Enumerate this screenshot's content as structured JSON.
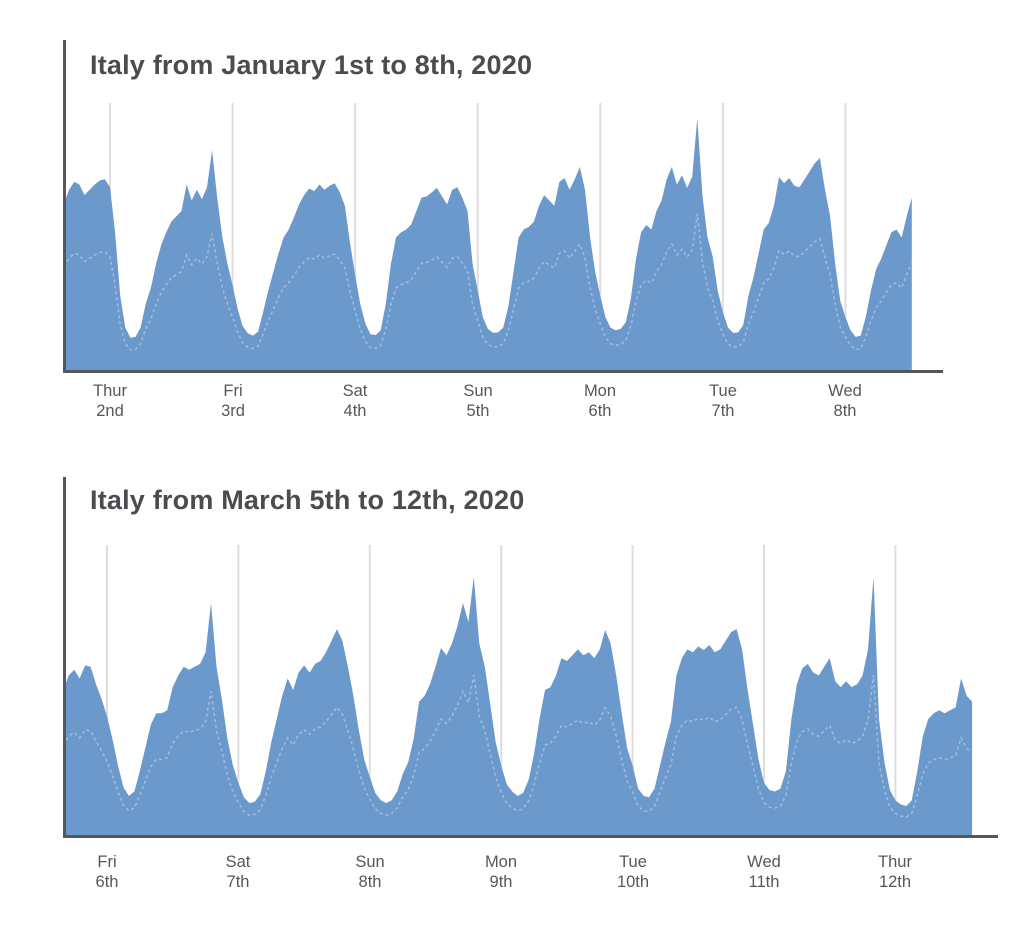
{
  "page": {
    "background": "#ffffff",
    "description": "Two stacked area charts of relative internet traffic in Italy, daily wave pattern, no y-axis ticks"
  },
  "chart_data": [
    {
      "type": "area",
      "title": "Italy from January 1st to 8th, 2020",
      "x_tick_labels": [
        {
          "day": "Thur",
          "date": "2nd"
        },
        {
          "day": "Fri",
          "date": "3rd"
        },
        {
          "day": "Sat",
          "date": "4th"
        },
        {
          "day": "Sun",
          "date": "5th"
        },
        {
          "day": "Mon",
          "date": "6th"
        },
        {
          "day": "Tue",
          "date": "7th"
        },
        {
          "day": "Wed",
          "date": "8th"
        }
      ],
      "x_tick_positions_hours": [
        0,
        24,
        48,
        72,
        96,
        120,
        144
      ],
      "x_start_hour": -9,
      "x_step_hours": 1,
      "x_hours_per_day": 24,
      "y_unit": "relative traffic (0-1, axis unlabeled)",
      "ylim": [
        0,
        1
      ],
      "grid": "vertical day gridlines only",
      "legend": "none",
      "series": [
        {
          "name": "current-period-traffic",
          "values": [
            0.63,
            0.68,
            0.71,
            0.7,
            0.66,
            0.68,
            0.7,
            0.715,
            0.72,
            0.69,
            0.52,
            0.28,
            0.16,
            0.122,
            0.125,
            0.16,
            0.25,
            0.31,
            0.4,
            0.47,
            0.52,
            0.56,
            0.58,
            0.6,
            0.7,
            0.64,
            0.68,
            0.645,
            0.69,
            0.83,
            0.65,
            0.5,
            0.4,
            0.32,
            0.23,
            0.165,
            0.138,
            0.13,
            0.145,
            0.22,
            0.3,
            0.37,
            0.44,
            0.5,
            0.53,
            0.575,
            0.625,
            0.66,
            0.685,
            0.675,
            0.7,
            0.68,
            0.695,
            0.705,
            0.67,
            0.62,
            0.48,
            0.36,
            0.25,
            0.175,
            0.135,
            0.132,
            0.15,
            0.25,
            0.4,
            0.5,
            0.52,
            0.53,
            0.55,
            0.6,
            0.65,
            0.655,
            0.67,
            0.687,
            0.655,
            0.625,
            0.68,
            0.69,
            0.65,
            0.6,
            0.4,
            0.3,
            0.2,
            0.155,
            0.14,
            0.142,
            0.16,
            0.24,
            0.37,
            0.5,
            0.53,
            0.54,
            0.56,
            0.62,
            0.66,
            0.64,
            0.62,
            0.71,
            0.724,
            0.68,
            0.72,
            0.766,
            0.68,
            0.5,
            0.37,
            0.28,
            0.2,
            0.16,
            0.15,
            0.155,
            0.18,
            0.27,
            0.42,
            0.52,
            0.547,
            0.53,
            0.6,
            0.64,
            0.72,
            0.766,
            0.7,
            0.735,
            0.687,
            0.73,
            0.95,
            0.66,
            0.5,
            0.43,
            0.3,
            0.22,
            0.16,
            0.14,
            0.142,
            0.17,
            0.28,
            0.35,
            0.44,
            0.53,
            0.555,
            0.62,
            0.728,
            0.705,
            0.724,
            0.695,
            0.69,
            0.72,
            0.75,
            0.78,
            0.8,
            0.68,
            0.58,
            0.4,
            0.26,
            0.2,
            0.15,
            0.125,
            0.13,
            0.2,
            0.3,
            0.38,
            0.42,
            0.47,
            0.52,
            0.53,
            0.5,
            0.58,
            0.65
          ]
        },
        {
          "name": "comparison-period-traffic (faint dashed line)",
          "derived_as": "current-period values scaled",
          "scale_of_current": 0.62
        }
      ],
      "colors": {
        "area": "#6C99CB",
        "comparison_line": "#A9C4E0",
        "gridline": "#DDDDDD",
        "axis": "#55575A"
      }
    },
    {
      "type": "area",
      "title": "Italy from March 5th to 12th, 2020",
      "x_tick_labels": [
        {
          "day": "Fri",
          "date": "6th"
        },
        {
          "day": "Sat",
          "date": "7th"
        },
        {
          "day": "Sun",
          "date": "8th"
        },
        {
          "day": "Mon",
          "date": "9th"
        },
        {
          "day": "Tue",
          "date": "10th"
        },
        {
          "day": "Wed",
          "date": "11th"
        },
        {
          "day": "Thur",
          "date": "12th"
        }
      ],
      "x_tick_positions_hours": [
        0,
        24,
        48,
        72,
        96,
        120,
        144
      ],
      "x_start_hour": -8,
      "x_step_hours": 1,
      "x_hours_per_day": 24,
      "y_unit": "relative traffic (0-1, axis unlabeled)",
      "ylim": [
        0,
        1
      ],
      "grid": "vertical day gridlines only",
      "legend": "none",
      "series": [
        {
          "name": "current-period-traffic",
          "values": [
            0.5,
            0.55,
            0.57,
            0.54,
            0.585,
            0.58,
            0.52,
            0.47,
            0.41,
            0.33,
            0.24,
            0.165,
            0.135,
            0.15,
            0.22,
            0.3,
            0.38,
            0.42,
            0.42,
            0.43,
            0.51,
            0.55,
            0.58,
            0.57,
            0.58,
            0.59,
            0.63,
            0.8,
            0.58,
            0.465,
            0.33,
            0.24,
            0.18,
            0.13,
            0.11,
            0.115,
            0.14,
            0.22,
            0.32,
            0.4,
            0.48,
            0.54,
            0.5,
            0.56,
            0.585,
            0.56,
            0.59,
            0.6,
            0.63,
            0.67,
            0.71,
            0.67,
            0.58,
            0.48,
            0.36,
            0.26,
            0.2,
            0.145,
            0.12,
            0.11,
            0.12,
            0.15,
            0.21,
            0.25,
            0.33,
            0.46,
            0.48,
            0.52,
            0.58,
            0.645,
            0.62,
            0.66,
            0.72,
            0.8,
            0.735,
            0.89,
            0.66,
            0.58,
            0.45,
            0.32,
            0.24,
            0.175,
            0.15,
            0.135,
            0.145,
            0.19,
            0.28,
            0.4,
            0.5,
            0.51,
            0.55,
            0.61,
            0.6,
            0.62,
            0.64,
            0.62,
            0.63,
            0.61,
            0.64,
            0.707,
            0.66,
            0.55,
            0.42,
            0.3,
            0.24,
            0.16,
            0.135,
            0.13,
            0.16,
            0.24,
            0.32,
            0.39,
            0.55,
            0.61,
            0.64,
            0.63,
            0.65,
            0.638,
            0.655,
            0.63,
            0.64,
            0.67,
            0.7,
            0.71,
            0.64,
            0.5,
            0.38,
            0.26,
            0.18,
            0.155,
            0.15,
            0.16,
            0.22,
            0.4,
            0.52,
            0.575,
            0.59,
            0.56,
            0.55,
            0.58,
            0.61,
            0.53,
            0.51,
            0.53,
            0.51,
            0.52,
            0.55,
            0.64,
            0.89,
            0.4,
            0.25,
            0.155,
            0.12,
            0.105,
            0.1,
            0.12,
            0.22,
            0.34,
            0.4,
            0.42,
            0.43,
            0.42,
            0.43,
            0.44,
            0.54,
            0.48,
            0.46
          ]
        },
        {
          "name": "comparison-period-traffic (faint dashed line)",
          "derived_as": "current-period values scaled",
          "scale_of_current": 0.62
        }
      ],
      "colors": {
        "area": "#6C99CB",
        "comparison_line": "#A9C4E0",
        "gridline": "#DDDDDD",
        "axis": "#55575A"
      }
    }
  ]
}
